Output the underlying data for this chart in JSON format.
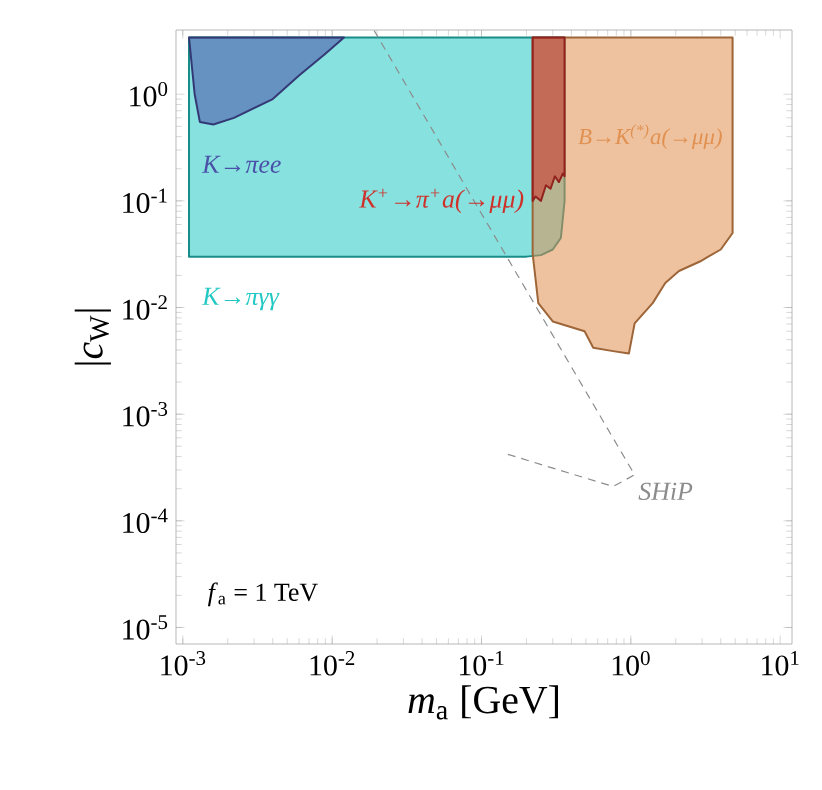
{
  "chart_data": {
    "type": "area",
    "xlabel": "*m*$_{a}$ [GeV]",
    "ylabel": "|*c*$_{W}$|",
    "log": "xy",
    "grid": false,
    "xlim": [
      0.0009,
      12
    ],
    "ylim": [
      7e-06,
      4
    ],
    "xticks": [
      {
        "value": 0.001,
        "label": "10$^{-3}$"
      },
      {
        "value": 0.01,
        "label": "10$^{-2}$"
      },
      {
        "value": 0.1,
        "label": "10$^{-1}$"
      },
      {
        "value": 1,
        "label": "10$^{0}$"
      },
      {
        "value": 10,
        "label": "10$^{1}$"
      }
    ],
    "yticks": [
      {
        "value": 1e-05,
        "label": "10$^{-5}$"
      },
      {
        "value": 0.0001,
        "label": "10$^{-4}$"
      },
      {
        "value": 0.001,
        "label": "10$^{-3}$"
      },
      {
        "value": 0.01,
        "label": "10$^{-2}$"
      },
      {
        "value": 0.1,
        "label": "10$^{-1}$"
      },
      {
        "value": 1,
        "label": "10$^{0}$"
      }
    ],
    "annotations": [
      "*f*$_{a}$ = 1 TeV"
    ],
    "series": [
      {
        "name": "K→πγγ",
        "color": "#22c8c4",
        "x": [
          0.0011,
          0.36,
          0.36,
          0.34,
          0.3,
          0.25,
          0.2,
          0.0011
        ],
        "values": [
          3.4,
          3.4,
          0.1,
          0.045,
          0.035,
          0.031,
          0.03,
          0.03
        ]
      },
      {
        "name": "B→K$^{(*)}$a(→μμ)",
        "color": "#e09050",
        "x": [
          0.22,
          4.8,
          4.8,
          4.0,
          3.3,
          2.9,
          2.1,
          1.7,
          1.4,
          1.06,
          0.97,
          0.76,
          0.56,
          0.49,
          0.3,
          0.24,
          0.22
        ],
        "values": [
          3.4,
          3.4,
          0.05,
          0.035,
          0.03,
          0.027,
          0.022,
          0.017,
          0.011,
          0.0071,
          0.0037,
          0.0039,
          0.0042,
          0.006,
          0.0074,
          0.011,
          0.032
        ]
      },
      {
        "name": "K$^{+}$→π$^{+}$a(→μμ)",
        "color": "#d0302a",
        "x": [
          0.22,
          0.36,
          0.36,
          0.35,
          0.33,
          0.31,
          0.29,
          0.27,
          0.25,
          0.23,
          0.22
        ],
        "values": [
          3.4,
          3.4,
          0.17,
          0.18,
          0.15,
          0.17,
          0.13,
          0.14,
          0.1,
          0.11,
          0.1
        ]
      },
      {
        "name": "K→πee",
        "color": "#4a52a8",
        "x": [
          0.0011,
          0.012,
          0.009,
          0.006,
          0.004,
          0.0022,
          0.0016,
          0.0013,
          0.0012
        ],
        "values": [
          3.4,
          3.4,
          2.4,
          1.5,
          0.9,
          0.6,
          0.52,
          0.55,
          1.0
        ]
      },
      {
        "name": "SHiP",
        "type": "line",
        "line_style": "dashed",
        "color": "#8c8c8c",
        "x": [
          0.15,
          0.76,
          1.06,
          0.019
        ],
        "values": [
          0.00042,
          0.00021,
          0.00027,
          4
        ]
      }
    ]
  }
}
